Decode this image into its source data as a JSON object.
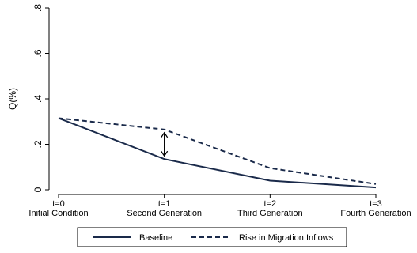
{
  "chart_data": {
    "type": "line",
    "title": "",
    "xlabel": "",
    "ylabel": "Q(%)",
    "ylim": [
      0,
      0.8
    ],
    "grid": false,
    "legend_position": "bottom",
    "categories": [
      {
        "top": "t=0",
        "bottom": "Initial Condition"
      },
      {
        "top": "t=1",
        "bottom": "Second Generation"
      },
      {
        "top": "t=2",
        "bottom": "Third Generation"
      },
      {
        "top": "t=3",
        "bottom": "Fourth Generation"
      }
    ],
    "yticks": [
      {
        "value": 0,
        "label": "0"
      },
      {
        "value": 0.2,
        "label": ".2"
      },
      {
        "value": 0.4,
        "label": ".4"
      },
      {
        "value": 0.6,
        "label": ".6"
      },
      {
        "value": 0.8,
        "label": ".8"
      }
    ],
    "series": [
      {
        "name": "Baseline",
        "style": "solid",
        "color": "#1a2a4a",
        "values": [
          0.315,
          0.135,
          0.04,
          0.01
        ]
      },
      {
        "name": "Rise in Migration Inflows",
        "style": "dashed",
        "color": "#1a2a4a",
        "values": [
          0.315,
          0.265,
          0.095,
          0.025
        ]
      }
    ],
    "annotations": [
      {
        "type": "double-arrow",
        "x_index": 1,
        "from": 0.135,
        "to": 0.265
      }
    ]
  }
}
